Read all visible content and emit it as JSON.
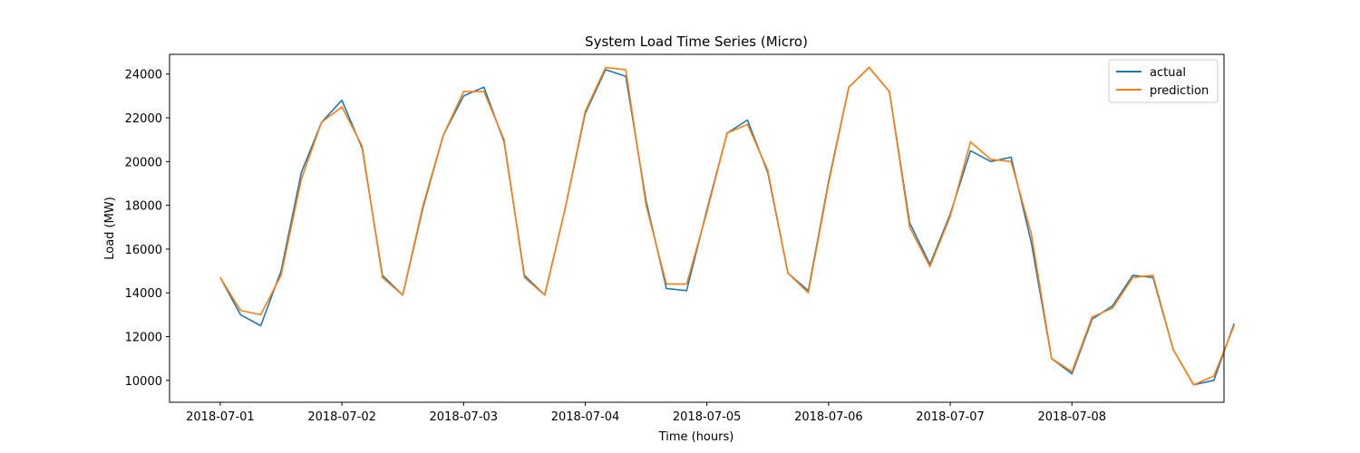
{
  "chart_data": {
    "type": "line",
    "title": "System Load Time Series (Micro)",
    "xlabel": "Time (hours)",
    "ylabel": "Load (MW)",
    "x_start": "2018-07-01",
    "x_step_hours": 4,
    "xlim": [
      "2018-06-30 14:00",
      "2018-07-09 06:00"
    ],
    "ylim": [
      9000,
      24900
    ],
    "xticks": [
      "2018-07-01",
      "2018-07-02",
      "2018-07-03",
      "2018-07-04",
      "2018-07-05",
      "2018-07-06",
      "2018-07-07",
      "2018-07-08"
    ],
    "yticks": [
      10000,
      12000,
      14000,
      16000,
      18000,
      20000,
      22000,
      24000
    ],
    "legend_position": "top-right",
    "grid": false,
    "series": [
      {
        "name": "actual",
        "color": "#1f77b4",
        "values": [
          14700,
          13000,
          12500,
          15000,
          19500,
          21800,
          22800,
          20600,
          14800,
          13900,
          17900,
          21200,
          23000,
          23400,
          20900,
          14800,
          13900,
          17800,
          22200,
          24200,
          23900,
          18200,
          14200,
          14100,
          17800,
          21300,
          21900,
          19500,
          14900,
          14100,
          19100,
          23400,
          24300,
          23200,
          17200,
          15300,
          17600,
          20500,
          20000,
          20200,
          16300,
          11000,
          10300,
          12800,
          13400,
          14800,
          14700,
          11400,
          9800,
          10000,
          12600
        ]
      },
      {
        "name": "prediction",
        "color": "#ff7f0e",
        "values": [
          14700,
          13200,
          13000,
          14800,
          19200,
          21800,
          22500,
          20700,
          14700,
          13900,
          18000,
          21200,
          23200,
          23200,
          21000,
          14700,
          13900,
          17800,
          22300,
          24300,
          24200,
          18000,
          14400,
          14400,
          17700,
          21300,
          21700,
          19600,
          14900,
          14000,
          19000,
          23400,
          24300,
          23200,
          17000,
          15200,
          17500,
          20900,
          20100,
          20000,
          16700,
          11000,
          10400,
          12900,
          13300,
          14700,
          14800,
          11400,
          9800,
          10200,
          12500
        ]
      }
    ]
  }
}
